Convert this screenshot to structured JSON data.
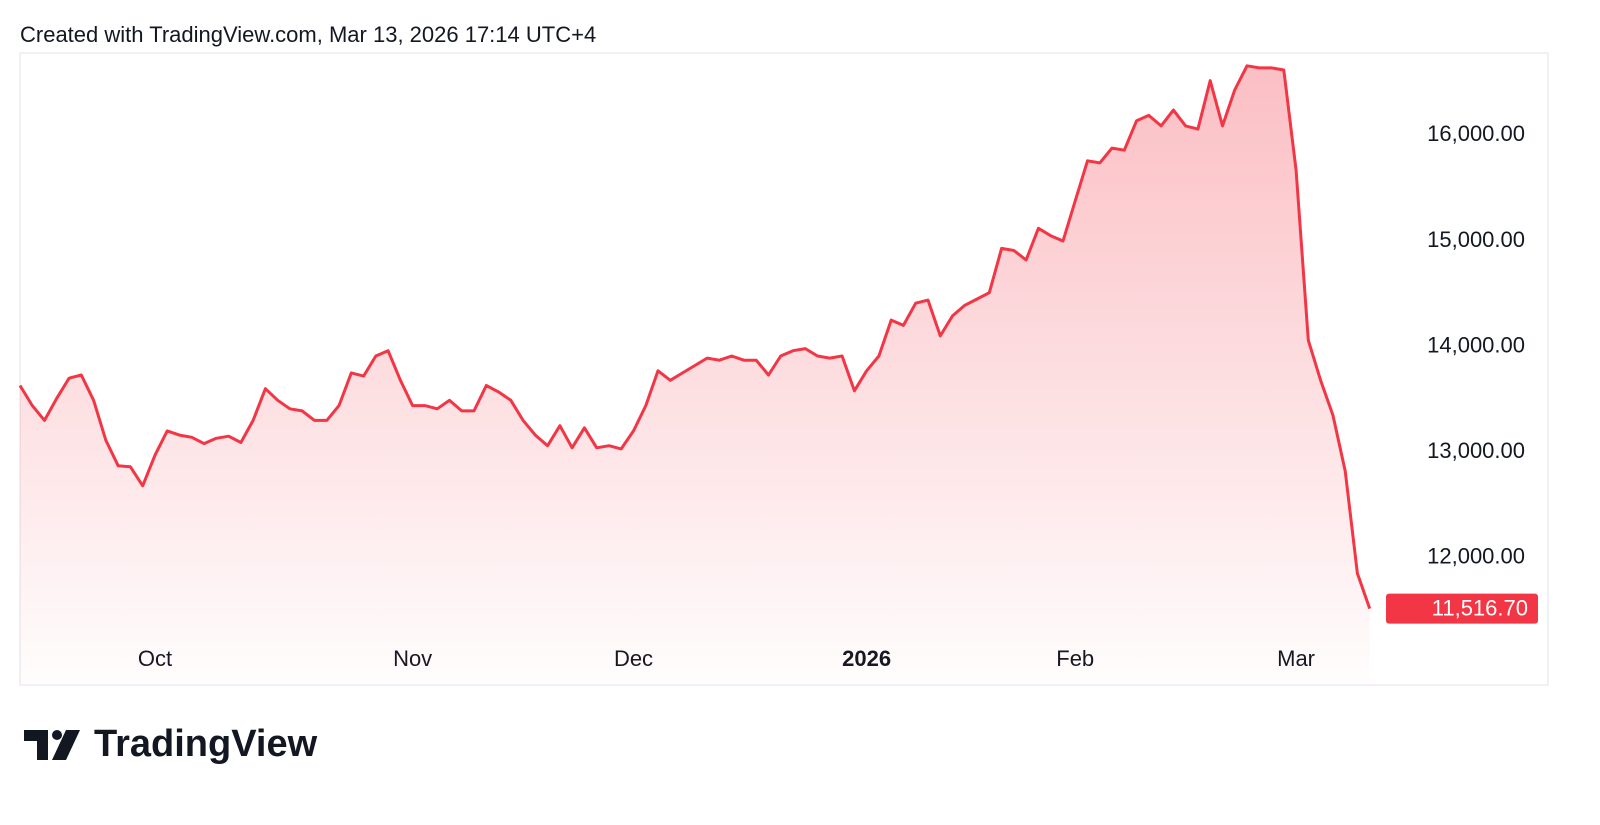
{
  "chart_data": {
    "type": "line",
    "title": "Created with TradingView.com, Mar 13, 2026 17:14 UTC+4",
    "color": "#f23645",
    "categories": [
      null,
      null,
      null,
      null,
      null,
      null,
      null,
      null,
      null,
      null,
      null,
      "Oct",
      null,
      null,
      null,
      null,
      null,
      null,
      null,
      null,
      null,
      null,
      null,
      null,
      null,
      null,
      null,
      null,
      null,
      null,
      null,
      null,
      "Nov",
      null,
      null,
      null,
      null,
      null,
      null,
      null,
      null,
      null,
      null,
      null,
      null,
      null,
      null,
      null,
      null,
      null,
      "Dec",
      null,
      null,
      null,
      null,
      null,
      null,
      null,
      null,
      null,
      null,
      null,
      null,
      null,
      null,
      null,
      null,
      null,
      null,
      "2026",
      null,
      null,
      null,
      null,
      null,
      null,
      null,
      null,
      null,
      null,
      null,
      null,
      null,
      null,
      null,
      null,
      "Feb",
      null,
      null,
      null,
      null,
      null,
      null,
      null,
      null,
      null,
      null,
      null,
      null,
      null,
      null,
      null,
      null,
      null,
      "Mar",
      null,
      null,
      null,
      null,
      null,
      null
    ],
    "values": [
      13630,
      13440,
      13300,
      13510,
      13700,
      13730,
      13490,
      13110,
      12870,
      12860,
      12680,
      12970,
      13200,
      13160,
      13140,
      13080,
      13130,
      13150,
      13090,
      13300,
      13600,
      13490,
      13410,
      13390,
      13300,
      13300,
      13440,
      13750,
      13720,
      13910,
      13960,
      13680,
      13440,
      13440,
      13410,
      13490,
      13390,
      13390,
      13630,
      13570,
      13490,
      13300,
      13160,
      13060,
      13250,
      13040,
      13230,
      13040,
      13060,
      13030,
      13200,
      13440,
      13770,
      13680,
      13750,
      13820,
      13890,
      13870,
      13910,
      13870,
      13870,
      13730,
      13910,
      13960,
      13980,
      13910,
      13890,
      13910,
      13580,
      13770,
      13910,
      14250,
      14200,
      14410,
      14440,
      14100,
      14290,
      14390,
      14450,
      14510,
      14930,
      14910,
      14820,
      15120,
      15050,
      15000,
      15380,
      15760,
      15740,
      15880,
      15860,
      16140,
      16190,
      16090,
      16240,
      16090,
      16060,
      16520,
      16090,
      16430,
      16660,
      16640,
      16640,
      16620,
      15670,
      14060,
      13680,
      13350,
      12820,
      11850,
      11516.7
    ],
    "value_labels": [
      null,
      null,
      null,
      null,
      null,
      null,
      null,
      null,
      null,
      null,
      null,
      null,
      null,
      null,
      null,
      null,
      null,
      null,
      null,
      null,
      null,
      null,
      null,
      null,
      null,
      null,
      null,
      null,
      null,
      null,
      null,
      null,
      null,
      null,
      null,
      null,
      null,
      null,
      null,
      null,
      null,
      null,
      null,
      null,
      null,
      null,
      null,
      null,
      null,
      null,
      null,
      null,
      null,
      null,
      null,
      null,
      null,
      null,
      null,
      null,
      null,
      null,
      null,
      null,
      null,
      null,
      null,
      null,
      null,
      null,
      null,
      null,
      null,
      null,
      null,
      null,
      null,
      null,
      null,
      null,
      null,
      null,
      null,
      null,
      null,
      null,
      null,
      null,
      null,
      null,
      null,
      null,
      null,
      null,
      null,
      null,
      null,
      null,
      null,
      null,
      null,
      null,
      null,
      null,
      null,
      null,
      null,
      null,
      null,
      null,
      "11,516.70"
    ],
    "ylim": [
      11200,
      16800
    ],
    "yticks": [
      {
        "value": 12000,
        "label": "12,000.00"
      },
      {
        "value": 13000,
        "label": "13,000.00"
      },
      {
        "value": 14000,
        "label": "14,000.00"
      },
      {
        "value": 15000,
        "label": "15,000.00"
      },
      {
        "value": 16000,
        "label": "16,000.00"
      }
    ],
    "grid": false
  },
  "footer": {
    "brand": "TradingView"
  }
}
